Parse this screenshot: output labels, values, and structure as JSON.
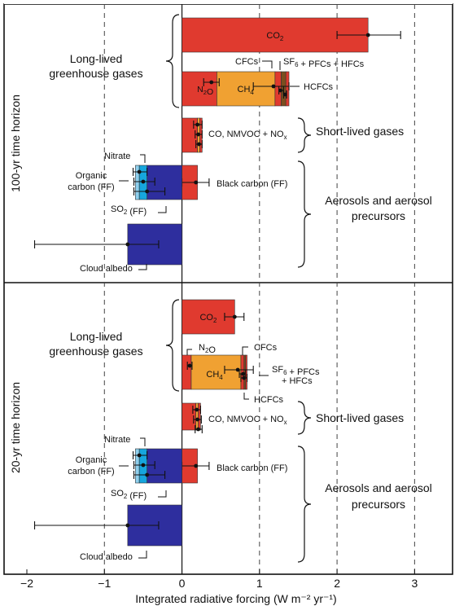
{
  "chart_data": {
    "type": "bar",
    "orientation": "horizontal",
    "xlabel": "Integrated radiative forcing (W m⁻² yr⁻¹)",
    "xlim": [
      -2,
      3.5
    ],
    "xticks": [
      -2,
      -1,
      0,
      1,
      2,
      3
    ],
    "grid": "dashed vertical lines at -1, 1, 2, 3",
    "panels": [
      {
        "title": "100-yr time horizon",
        "groups": [
          "Long-lived greenhouse gases",
          "Short-lived gases",
          "Aerosols and aerosol precursors"
        ],
        "bars": [
          {
            "label": "CO₂",
            "stack": [
              {
                "component": "CO₂",
                "start": 0,
                "end": 2.4,
                "color": "#e03a2f"
              }
            ],
            "error": [
              2.0,
              2.82
            ],
            "point": 2.4
          },
          {
            "label": "N₂O / CH₄ / CFCs / SF₆ + PFCs + HFCs / HCFCs",
            "stack": [
              {
                "component": "N₂O",
                "start": 0,
                "end": 0.45,
                "color": "#e03a2f"
              },
              {
                "component": "CH₄",
                "start": 0.45,
                "end": 1.2,
                "color": "#f0a132"
              },
              {
                "component": "CFCs",
                "start": 1.2,
                "end": 1.28,
                "color": "#e03a2f"
              },
              {
                "component": "SF₆ + PFCs + HFCs",
                "start": 1.28,
                "end": 1.34,
                "color": "#7a4f1f"
              },
              {
                "component": "HCFCs",
                "start": 1.34,
                "end": 1.38,
                "color": "#e03a2f"
              }
            ],
            "errors": [
              {
                "center": 0.38,
                "low": 0.28,
                "high": 0.48
              },
              {
                "center": 1.18,
                "low": 0.92,
                "high": 1.38
              },
              {
                "center": 1.27,
                "low": 1.25,
                "high": 1.31
              },
              {
                "center": 1.33,
                "low": 1.31,
                "high": 1.35
              }
            ]
          },
          {
            "label": "CO, NMVOC + NOₓ",
            "stack": [
              {
                "component": "CO",
                "start": 0,
                "end": 0.2,
                "color": "#e03a2f"
              },
              {
                "component": "NMVOC",
                "start": 0.2,
                "end": 0.23,
                "color": "#f0a132"
              },
              {
                "component": "NOₓ",
                "start": 0.23,
                "end": 0.26,
                "color": "#e03a2f"
              }
            ],
            "errors": [
              {
                "center": 0.2,
                "low": 0.15,
                "high": 0.26
              },
              {
                "center": 0.21,
                "low": 0.17,
                "high": 0.26
              },
              {
                "center": 0.22,
                "low": 0.18,
                "high": 0.26
              }
            ]
          },
          {
            "label": "Black carbon (FF)",
            "stack": [
              {
                "component": "Black carbon (FF)",
                "start": 0,
                "end": 0.2,
                "color": "#e03a2f"
              }
            ],
            "errors": [
              {
                "center": 0.18,
                "low": 0.0,
                "high": 0.35
              }
            ]
          },
          {
            "label": "Nitrate / Organic carbon (FF) / SO₂ (FF)",
            "stack": [
              {
                "component": "Nitrate",
                "start": -0.6,
                "end": -0.55,
                "color": "#8fd0ee"
              },
              {
                "component": "Organic carbon (FF)",
                "start": -0.55,
                "end": -0.45,
                "color": "#16a6de"
              },
              {
                "component": "SO₂ (FF)",
                "start": -0.45,
                "end": 0,
                "color": "#2e2e9e"
              }
            ],
            "errors": [
              {
                "center": -0.55,
                "low": -0.63,
                "high": -0.45
              },
              {
                "center": -0.5,
                "low": -0.62,
                "high": -0.35
              },
              {
                "center": -0.45,
                "low": -0.62,
                "high": -0.22
              }
            ]
          },
          {
            "label": "Cloud albedo",
            "stack": [
              {
                "component": "Cloud albedo",
                "start": -0.7,
                "end": 0,
                "color": "#2e2e9e"
              }
            ],
            "errors": [
              {
                "center": -0.7,
                "low": -1.9,
                "high": -0.3
              }
            ]
          }
        ]
      },
      {
        "title": "20-yr time horizon",
        "groups": [
          "Long-lived greenhouse gases",
          "Short-lived gases",
          "Aerosols and aerosol precursors"
        ],
        "bars": [
          {
            "label": "CO₂",
            "stack": [
              {
                "component": "CO₂",
                "start": 0,
                "end": 0.68,
                "color": "#e03a2f"
              }
            ],
            "errors": [
              {
                "center": 0.68,
                "low": 0.55,
                "high": 0.8
              }
            ]
          },
          {
            "label": "N₂O / CH₄ / CFCs / SF₆ + PFCs + HFCs / HCFCs",
            "stack": [
              {
                "component": "N₂O",
                "start": 0,
                "end": 0.12,
                "color": "#e03a2f"
              },
              {
                "component": "CH₄",
                "start": 0.12,
                "end": 0.76,
                "color": "#f0a132"
              },
              {
                "component": "CFCs",
                "start": 0.76,
                "end": 0.8,
                "color": "#e03a2f"
              },
              {
                "component": "SF₆ + PFCs + HFCs",
                "start": 0.8,
                "end": 0.82,
                "color": "#7a4f1f"
              },
              {
                "component": "HCFCs",
                "start": 0.82,
                "end": 0.84,
                "color": "#e03a2f"
              }
            ],
            "errors": [
              {
                "center": 0.1,
                "low": 0.07,
                "high": 0.13
              },
              {
                "center": 0.72,
                "low": 0.55,
                "high": 0.92
              },
              {
                "center": 0.79,
                "low": 0.74,
                "high": 0.82
              },
              {
                "center": 0.8,
                "low": 0.76,
                "high": 0.84
              }
            ]
          },
          {
            "label": "CO, NMVOC + NOₓ",
            "stack": [
              {
                "component": "CO",
                "start": 0,
                "end": 0.18,
                "color": "#e03a2f"
              },
              {
                "component": "NMVOC",
                "start": 0.18,
                "end": 0.21,
                "color": "#f0a132"
              },
              {
                "component": "NOₓ",
                "start": 0.21,
                "end": 0.24,
                "color": "#e03a2f"
              }
            ],
            "errors": [
              {
                "center": 0.19,
                "low": 0.14,
                "high": 0.24
              },
              {
                "center": 0.2,
                "low": 0.15,
                "high": 0.25
              },
              {
                "center": 0.21,
                "low": 0.17,
                "high": 0.26
              }
            ]
          },
          {
            "label": "Black carbon (FF)",
            "stack": [
              {
                "component": "Black carbon (FF)",
                "start": 0,
                "end": 0.2,
                "color": "#e03a2f"
              }
            ],
            "errors": [
              {
                "center": 0.18,
                "low": 0.0,
                "high": 0.35
              }
            ]
          },
          {
            "label": "Nitrate / Organic carbon (FF) / SO₂ (FF)",
            "stack": [
              {
                "component": "Nitrate",
                "start": -0.6,
                "end": -0.55,
                "color": "#8fd0ee"
              },
              {
                "component": "Organic carbon (FF)",
                "start": -0.55,
                "end": -0.45,
                "color": "#16a6de"
              },
              {
                "component": "SO₂ (FF)",
                "start": -0.45,
                "end": 0,
                "color": "#2e2e9e"
              }
            ],
            "errors": [
              {
                "center": -0.55,
                "low": -0.63,
                "high": -0.45
              },
              {
                "center": -0.5,
                "low": -0.62,
                "high": -0.35
              },
              {
                "center": -0.45,
                "low": -0.62,
                "high": -0.22
              }
            ]
          },
          {
            "label": "Cloud albedo",
            "stack": [
              {
                "component": "Cloud albedo",
                "start": -0.7,
                "end": 0,
                "color": "#2e2e9e"
              }
            ],
            "errors": [
              {
                "center": -0.7,
                "low": -1.9,
                "high": -0.3
              }
            ]
          }
        ]
      }
    ]
  },
  "labels": {
    "panel1_title": "100-yr time horizon",
    "panel2_title": "20-yr time horizon",
    "long_lived": [
      "Long-lived",
      "greenhouse gases"
    ],
    "short_lived": "Short-lived gases",
    "aerosols": [
      "Aerosols and aerosol",
      "precursors"
    ],
    "co2": "CO2",
    "n2o": "N2O",
    "ch4": "CH4",
    "cfcs": "CFCs",
    "sf6": "SF6 + PFCs + HFCs",
    "sf6_line1": "SF6 + PFCs",
    "sf6_line2": "+ HFCs",
    "hcfcs": "HCFCs",
    "co_nmvoc": "CO, NMVOC + NOx",
    "black_carbon": "Black carbon (FF)",
    "nitrate": "Nitrate",
    "organic": [
      "Organic",
      "carbon (FF)"
    ],
    "so2": "SO2 (FF)",
    "cloud": "Cloud albedo",
    "xlabel": "Integrated radiative forcing (W m-2 yr-1)"
  }
}
